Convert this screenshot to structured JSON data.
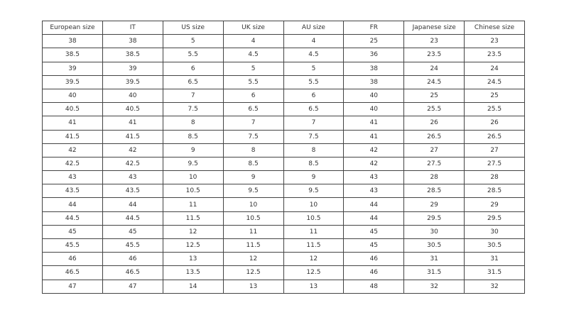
{
  "table": {
    "headers": [
      "European size",
      "IT",
      "US size",
      "UK size",
      "AU size",
      "FR",
      "Japanese size",
      "Chinese size"
    ],
    "rows": [
      [
        "38",
        "38",
        "5",
        "4",
        "4",
        "25",
        "23",
        "23"
      ],
      [
        "38.5",
        "38.5",
        "5.5",
        "4.5",
        "4.5",
        "36",
        "23.5",
        "23.5"
      ],
      [
        "39",
        "39",
        "6",
        "5",
        "5",
        "38",
        "24",
        "24"
      ],
      [
        "39.5",
        "39.5",
        "6.5",
        "5.5",
        "5.5",
        "38",
        "24.5",
        "24.5"
      ],
      [
        "40",
        "40",
        "7",
        "6",
        "6",
        "40",
        "25",
        "25"
      ],
      [
        "40.5",
        "40.5",
        "7.5",
        "6.5",
        "6.5",
        "40",
        "25.5",
        "25.5"
      ],
      [
        "41",
        "41",
        "8",
        "7",
        "7",
        "41",
        "26",
        "26"
      ],
      [
        "41.5",
        "41.5",
        "8.5",
        "7.5",
        "7.5",
        "41",
        "26.5",
        "26.5"
      ],
      [
        "42",
        "42",
        "9",
        "8",
        "8",
        "42",
        "27",
        "27"
      ],
      [
        "42.5",
        "42.5",
        "9.5",
        "8.5",
        "8.5",
        "42",
        "27.5",
        "27.5"
      ],
      [
        "43",
        "43",
        "10",
        "9",
        "9",
        "43",
        "28",
        "28"
      ],
      [
        "43.5",
        "43.5",
        "10.5",
        "9.5",
        "9.5",
        "43",
        "28.5",
        "28.5"
      ],
      [
        "44",
        "44",
        "11",
        "10",
        "10",
        "44",
        "29",
        "29"
      ],
      [
        "44.5",
        "44.5",
        "11.5",
        "10.5",
        "10.5",
        "44",
        "29.5",
        "29.5"
      ],
      [
        "45",
        "45",
        "12",
        "11",
        "11",
        "45",
        "30",
        "30"
      ],
      [
        "45.5",
        "45.5",
        "12.5",
        "11.5",
        "11.5",
        "45",
        "30.5",
        "30.5"
      ],
      [
        "46",
        "46",
        "13",
        "12",
        "12",
        "46",
        "31",
        "31"
      ],
      [
        "46.5",
        "46.5",
        "13.5",
        "12.5",
        "12.5",
        "46",
        "31.5",
        "31.5"
      ],
      [
        "47",
        "47",
        "14",
        "13",
        "13",
        "48",
        "32",
        "32"
      ]
    ]
  }
}
